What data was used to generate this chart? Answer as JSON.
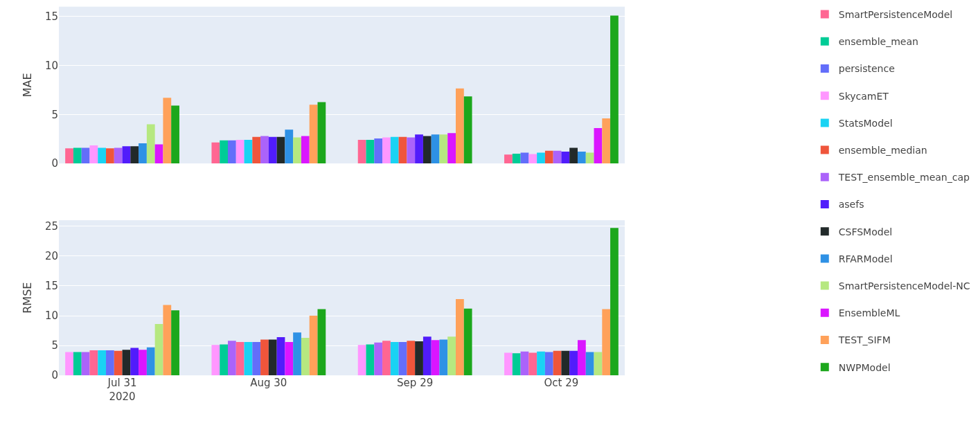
{
  "chart_data": [
    {
      "type": "bar",
      "ylabel": "MAE",
      "x": [
        "2020-07-31",
        "2020-08-30",
        "2020-09-29",
        "2020-10-29"
      ],
      "xlim": [
        "2020-07-18",
        "2020-11-11"
      ],
      "ylim": [
        0,
        16
      ],
      "yticks": [
        0,
        5,
        10,
        15
      ],
      "grid": "y",
      "legend": "right",
      "tick_labels": "y",
      "series": [
        {
          "name": "SmartPersistenceModel",
          "color": "#ff6692",
          "values": [
            1.55,
            2.15,
            2.4,
            0.9
          ]
        },
        {
          "name": "ensemble_mean",
          "color": "#00cc96",
          "values": [
            1.6,
            2.35,
            2.4,
            1.0
          ]
        },
        {
          "name": "persistence",
          "color": "#636efa",
          "values": [
            1.6,
            2.35,
            2.55,
            1.1
          ]
        },
        {
          "name": "SkycamET",
          "color": "#ff97ff",
          "values": [
            1.85,
            2.4,
            2.65,
            0.95
          ]
        },
        {
          "name": "StatsModel",
          "color": "#19d3f3",
          "values": [
            1.6,
            2.4,
            2.7,
            1.1
          ]
        },
        {
          "name": "ensemble_median",
          "color": "#ef553b",
          "values": [
            1.55,
            2.7,
            2.7,
            1.3
          ]
        },
        {
          "name": "TEST_ensemble_mean_cap",
          "color": "#ab63fa",
          "values": [
            1.6,
            2.8,
            2.65,
            1.3
          ]
        },
        {
          "name": "asefs",
          "color": "#511cfb",
          "values": [
            1.75,
            2.7,
            2.95,
            1.2
          ]
        },
        {
          "name": "CSFSModel",
          "color": "#222a2a",
          "values": [
            1.75,
            2.7,
            2.8,
            1.6
          ]
        },
        {
          "name": "RFARModel",
          "color": "#2e91e5",
          "values": [
            2.05,
            3.45,
            2.95,
            1.2
          ]
        },
        {
          "name": "SmartPersistenceModel-NC",
          "color": "#b6e880",
          "values": [
            4.0,
            2.65,
            2.95,
            1.1
          ]
        },
        {
          "name": "EnsembleML",
          "color": "#da16ff",
          "values": [
            1.95,
            2.8,
            3.1,
            3.6
          ]
        },
        {
          "name": "TEST_SIFM",
          "color": "#ffa15a",
          "values": [
            6.7,
            6.0,
            7.65,
            4.6
          ]
        },
        {
          "name": "NWPModel",
          "color": "#1ca71c",
          "values": [
            5.9,
            6.25,
            6.85,
            15.1
          ]
        }
      ]
    },
    {
      "type": "bar",
      "ylabel": "RMSE",
      "x": [
        "2020-07-31",
        "2020-08-30",
        "2020-09-29",
        "2020-10-29"
      ],
      "xlim": [
        "2020-07-18",
        "2020-11-11"
      ],
      "xticks": [
        {
          "value": "2020-07-31",
          "label": "Jul 31\n2020"
        },
        {
          "value": "2020-08-30",
          "label": "Aug 30"
        },
        {
          "value": "2020-09-29",
          "label": "Sep 29"
        },
        {
          "value": "2020-10-29",
          "label": "Oct 29"
        }
      ],
      "ylim": [
        0,
        26
      ],
      "yticks": [
        0,
        5,
        10,
        15,
        20,
        25
      ],
      "grid": "y",
      "legend": "right",
      "series": [
        {
          "name": "SkycamET",
          "color": "#ff97ff",
          "values": [
            3.9,
            5.1,
            5.1,
            3.8
          ]
        },
        {
          "name": "ensemble_mean",
          "color": "#00cc96",
          "values": [
            3.9,
            5.2,
            5.2,
            3.7
          ]
        },
        {
          "name": "TEST_ensemble_mean_cap",
          "color": "#ab63fa",
          "values": [
            3.9,
            5.8,
            5.5,
            4.0
          ]
        },
        {
          "name": "SmartPersistenceModel",
          "color": "#ff6692",
          "values": [
            4.2,
            5.6,
            5.8,
            3.8
          ]
        },
        {
          "name": "StatsModel",
          "color": "#19d3f3",
          "values": [
            4.2,
            5.6,
            5.6,
            4.0
          ]
        },
        {
          "name": "persistence",
          "color": "#636efa",
          "values": [
            4.2,
            5.6,
            5.6,
            3.9
          ]
        },
        {
          "name": "ensemble_median",
          "color": "#ef553b",
          "values": [
            4.1,
            6.0,
            5.8,
            4.1
          ]
        },
        {
          "name": "CSFSModel",
          "color": "#222a2a",
          "values": [
            4.3,
            6.0,
            5.7,
            4.1
          ]
        },
        {
          "name": "asefs",
          "color": "#511cfb",
          "values": [
            4.6,
            6.4,
            6.5,
            4.1
          ]
        },
        {
          "name": "EnsembleML",
          "color": "#da16ff",
          "values": [
            4.3,
            5.6,
            5.9,
            5.9
          ]
        },
        {
          "name": "RFARModel",
          "color": "#2e91e5",
          "values": [
            4.7,
            7.2,
            6.0,
            3.9
          ]
        },
        {
          "name": "SmartPersistenceModel-NC",
          "color": "#b6e880",
          "values": [
            8.6,
            6.3,
            6.5,
            3.9
          ]
        },
        {
          "name": "TEST_SIFM",
          "color": "#ffa15a",
          "values": [
            11.8,
            10.0,
            12.8,
            11.1
          ]
        },
        {
          "name": "NWPModel",
          "color": "#1ca71c",
          "values": [
            10.9,
            11.1,
            11.2,
            24.7
          ]
        }
      ]
    }
  ]
}
